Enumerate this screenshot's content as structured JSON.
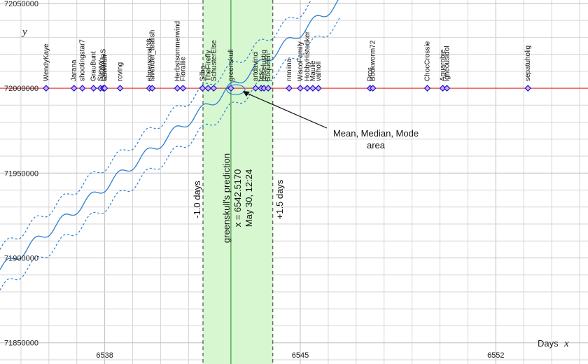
{
  "chart_data": {
    "type": "scatter",
    "xlabel": "x",
    "xunit": "Days",
    "ylabel": "y",
    "xlim": [
      6534.25,
      6555.3
    ],
    "ylim": [
      71837500,
      72052000
    ],
    "x_ticks": [
      6538,
      6545,
      6552
    ],
    "y_ticks": [
      71850000,
      71900000,
      71950000,
      72000000,
      72050000
    ],
    "target_y": 72000000,
    "predictions": [
      {
        "name": "WendyKaye",
        "x": 6535.9
      },
      {
        "name": "Jarana",
        "x": 6536.9
      },
      {
        "name": "shootingstar7",
        "x": 6537.2
      },
      {
        "name": "GrauBunt",
        "x": 6537.6
      },
      {
        "name": "Stevyy",
        "x": 6537.85
      },
      {
        "name": "LyudmilaS",
        "x": 6537.95
      },
      {
        "name": "Sawwah",
        "x": 6538.0
      },
      {
        "name": "roving",
        "x": 6538.55
      },
      {
        "name": "ehpersonal38",
        "x": 6539.6
      },
      {
        "name": "lavender_teafish",
        "x": 6539.7
      },
      {
        "name": "Herbstsommerwind",
        "x": 6540.6
      },
      {
        "name": "Floraliie",
        "x": 6540.8
      },
      {
        "name": "Silba",
        "x": 6541.5
      },
      {
        "name": "TheFirefly",
        "x": 6541.7
      },
      {
        "name": "SchusterElse",
        "x": 6541.9
      },
      {
        "name": "greenskull",
        "x": 6542.517
      },
      {
        "name": "artdavinci",
        "x": 6543.4
      },
      {
        "name": "tesc",
        "x": 6543.6
      },
      {
        "name": "reiselustig",
        "x": 6543.7
      },
      {
        "name": "Bbqueen",
        "x": 6543.85
      },
      {
        "name": "nnniina",
        "x": 6544.6
      },
      {
        "name": "WiscoFamily",
        "x": 6545.0
      },
      {
        "name": "HobbyHistoriker",
        "x": 6545.25
      },
      {
        "name": "Maulie",
        "x": 6545.45
      },
      {
        "name": "valholl",
        "x": 6545.65
      },
      {
        "name": "Dror",
        "x": 6547.5
      },
      {
        "name": "Bookworm72",
        "x": 6547.6
      },
      {
        "name": "ChocCrossie",
        "x": 6549.55
      },
      {
        "name": "Aguarobie",
        "x": 6550.1
      },
      {
        "name": "igneousidol",
        "x": 6550.25
      },
      {
        "name": "sepatuholig",
        "x": 6553.15
      }
    ],
    "highlight": {
      "name": "greenskull",
      "x": 6542.517,
      "band_start": 6541.517,
      "band_end": 6544.017,
      "line1": "greenskull's prediction",
      "line2": "x = 6542.5170",
      "line3": "May 30, 12:24",
      "minus_label": "-1.0 days",
      "plus_label": "+1.5 days"
    },
    "annotation": {
      "text_line1": "Mean, Median, Mode",
      "text_line2": "area",
      "target_x": 6542.517,
      "target_y": 72000000
    },
    "trend": {
      "x_start": 6534.25,
      "x_end": 6546.5,
      "y_start": 71893000,
      "slope": 13000,
      "offset": 12000,
      "wave_amplitude": 2800,
      "wave_period": 1.0
    },
    "colors": {
      "target_line": "#e02020",
      "trend": "#2a7fd4",
      "marker_stroke": "#1010c0",
      "marker_fill": "#d8a8ff",
      "band_fill": "#d6f7d0",
      "band_line": "#3a9a3a",
      "grid": "#d6d6d6"
    }
  }
}
